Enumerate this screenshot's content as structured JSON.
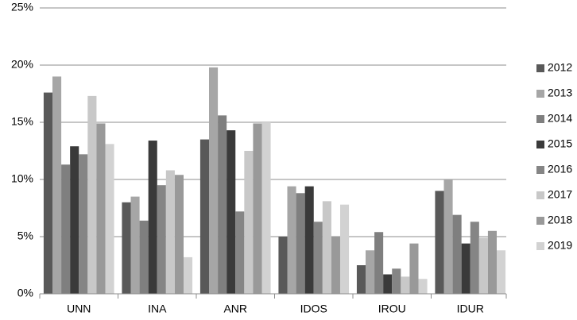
{
  "chart_data": {
    "type": "bar",
    "categories": [
      "UNN",
      "INA",
      "ANR",
      "IDOS",
      "IROU",
      "IDUR"
    ],
    "series": [
      {
        "name": "2012",
        "color": "#595959",
        "values": [
          17.6,
          8.0,
          13.5,
          5.0,
          2.5,
          9.0
        ]
      },
      {
        "name": "2013",
        "color": "#a6a6a6",
        "values": [
          19.0,
          8.5,
          19.8,
          9.4,
          3.8,
          10.0
        ]
      },
      {
        "name": "2014",
        "color": "#7f7f7f",
        "values": [
          11.3,
          6.4,
          15.6,
          8.8,
          5.4,
          6.9
        ]
      },
      {
        "name": "2015",
        "color": "#3a3a3a",
        "values": [
          12.9,
          13.4,
          14.3,
          9.4,
          1.7,
          4.4
        ]
      },
      {
        "name": "2016",
        "color": "#858585",
        "values": [
          12.2,
          9.5,
          7.2,
          6.3,
          2.2,
          6.3
        ]
      },
      {
        "name": "2017",
        "color": "#c8c8c8",
        "values": [
          17.3,
          10.8,
          12.5,
          8.1,
          1.5,
          4.9
        ]
      },
      {
        "name": "2018",
        "color": "#999999",
        "values": [
          14.9,
          10.4,
          14.9,
          5.0,
          4.4,
          5.5
        ]
      },
      {
        "name": "2019",
        "color": "#d2d2d2",
        "values": [
          13.1,
          3.2,
          15.0,
          7.8,
          1.3,
          3.8
        ]
      }
    ],
    "ylim": [
      0,
      25
    ],
    "yticks": [
      {
        "value": 0,
        "label": "0%"
      },
      {
        "value": 5,
        "label": "5%"
      },
      {
        "value": 10,
        "label": "10%"
      },
      {
        "value": 15,
        "label": "15%"
      },
      {
        "value": 20,
        "label": "20%"
      },
      {
        "value": 25,
        "label": "25%"
      }
    ],
    "grid": true,
    "legend": "right"
  }
}
